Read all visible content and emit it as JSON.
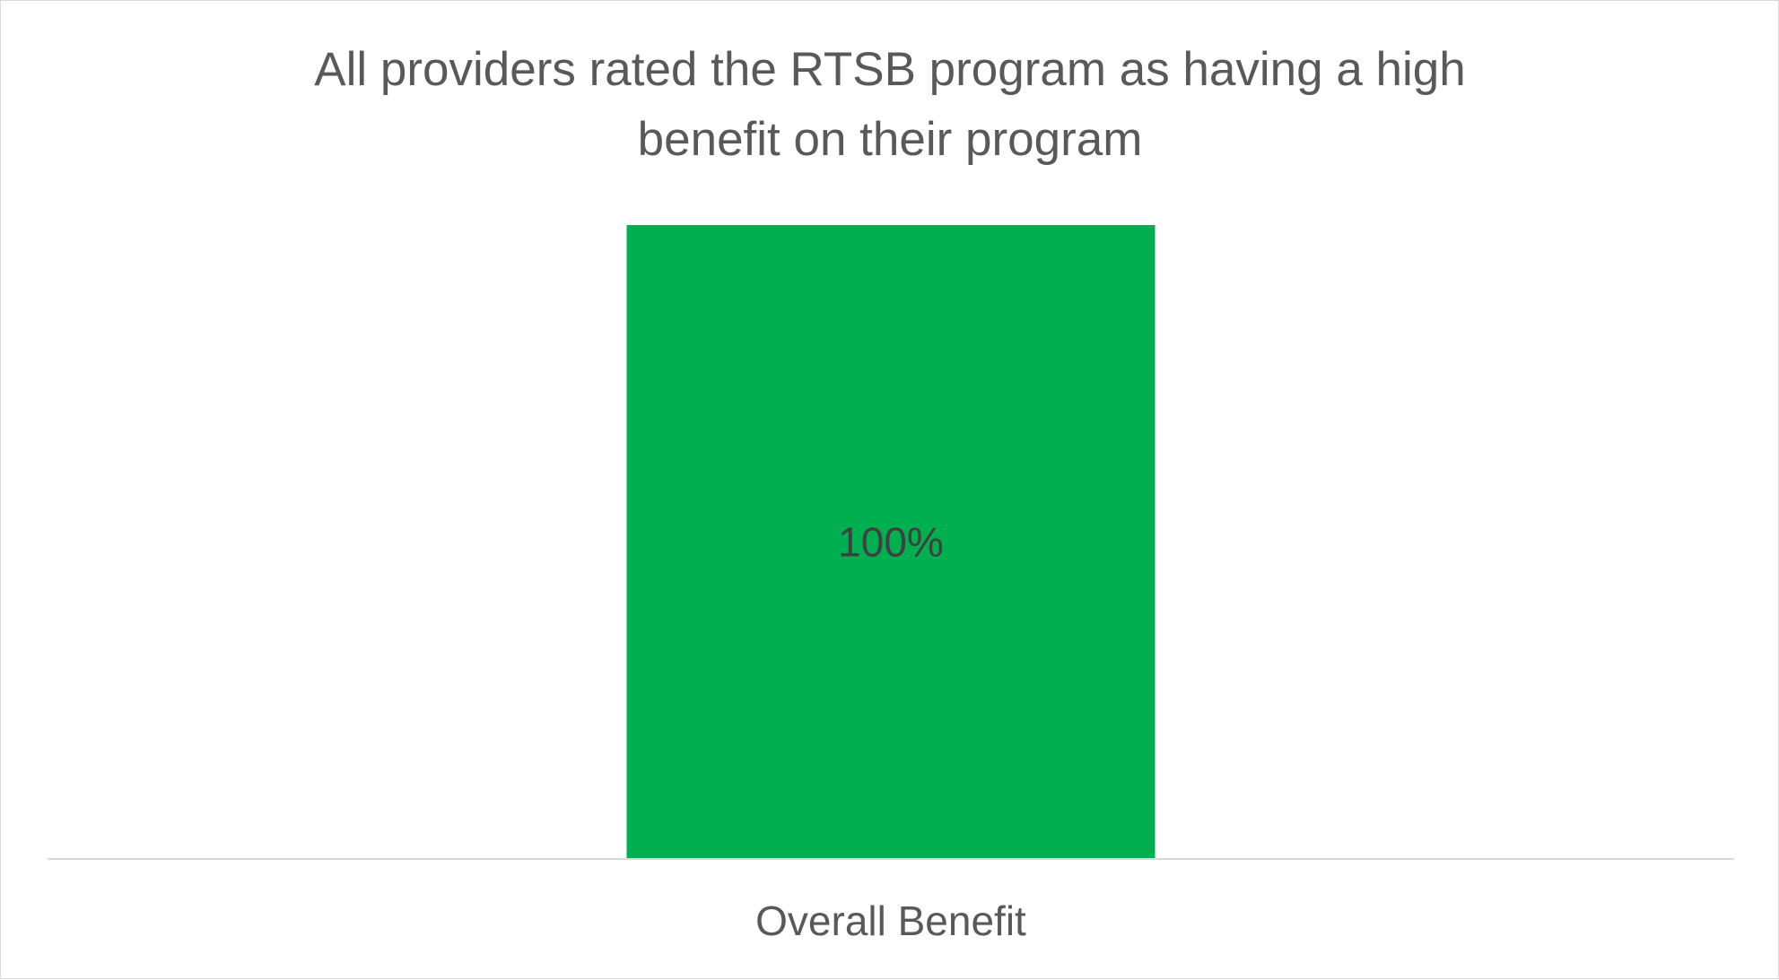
{
  "chart_data": {
    "type": "bar",
    "title_lines": [
      "All providers rated the RTSB program as having a high",
      "benefit on their program"
    ],
    "categories": [
      "Overall Benefit"
    ],
    "values": [
      100
    ],
    "data_labels": [
      "100%"
    ],
    "ylim": [
      0,
      100
    ],
    "grid": false,
    "legend": "none",
    "bar_color": "#00B050",
    "axis_color": "#D9D9D9",
    "text_color": "#595959",
    "data_label_color": "#404040"
  }
}
